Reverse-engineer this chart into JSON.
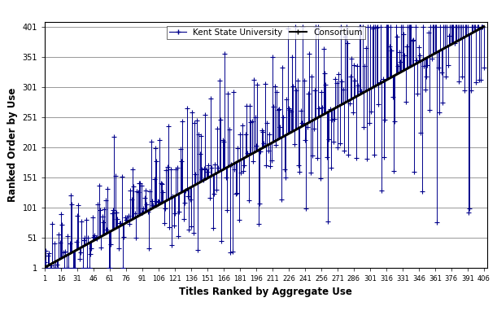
{
  "title": "",
  "xlabel": "Titles Ranked by Aggregate Use",
  "ylabel": "Ranked Order by Use",
  "legend_labels": [
    "Kent State University",
    "Consortium"
  ],
  "x_ticks": [
    1,
    16,
    31,
    46,
    61,
    76,
    91,
    106,
    121,
    136,
    151,
    166,
    181,
    196,
    211,
    226,
    241,
    256,
    271,
    286,
    301,
    316,
    331,
    346,
    361,
    376,
    391,
    406
  ],
  "y_ticks": [
    1,
    51,
    101,
    151,
    201,
    251,
    301,
    351,
    401
  ],
  "xlim": [
    1,
    409
  ],
  "ylim": [
    1,
    409
  ],
  "n_points": 406,
  "ksu_color": "#00008B",
  "consortium_color": "#000000",
  "background_color": "#ffffff",
  "grid_color": "#888888",
  "figsize": [
    6.11,
    3.82
  ],
  "dpi": 100,
  "seed": 77,
  "line_lw": 0.7,
  "diag_lw": 2.2,
  "marker_size": 4,
  "marker": "+"
}
